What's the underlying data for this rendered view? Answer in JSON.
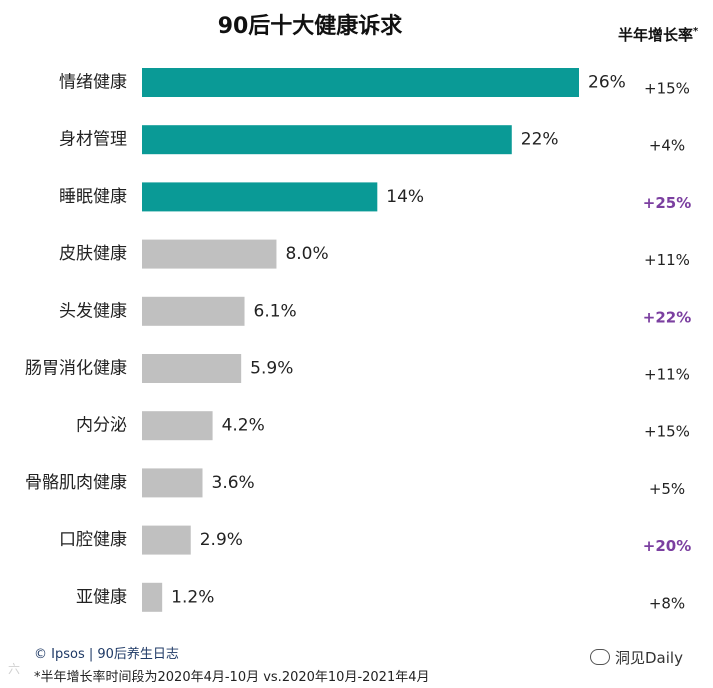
{
  "title": "90后十大健康诉求",
  "growth_header": "半年增长率",
  "growth_header_mark": "*",
  "footer": {
    "source": "© Ipsos | 90后养生日志",
    "note": "*半年增长率时间段为2020年4月-10月 vs.2020年10月-2021年4月"
  },
  "watermark": {
    "text": "洞见Daily",
    "icon": "wechat-icon"
  },
  "corner_mark": "六",
  "colors": {
    "highlight": "#0a9a96",
    "normal": "#c0c0c0",
    "purple": "#7b3fa0",
    "text": "#222222"
  },
  "chart_data": {
    "type": "bar",
    "orientation": "horizontal",
    "categories": [
      "情绪健康",
      "身材管理",
      "睡眠健康",
      "皮肤健康",
      "头发健康",
      "肠胃消化健康",
      "内分泌",
      "骨骼肌肉健康",
      "口腔健康",
      "亚健康"
    ],
    "values": [
      26,
      22,
      14,
      8.0,
      6.1,
      5.9,
      4.2,
      3.6,
      2.9,
      1.2
    ],
    "value_labels": [
      "26%",
      "22%",
      "14%",
      "8.0%",
      "6.1%",
      "5.9%",
      "4.2%",
      "3.6%",
      "2.9%",
      "1.2%"
    ],
    "highlighted": [
      true,
      true,
      true,
      false,
      false,
      false,
      false,
      false,
      false,
      false
    ],
    "growth": [
      "+15%",
      "+4%",
      "+25%",
      "+11%",
      "+22%",
      "+11%",
      "+15%",
      "+5%",
      "+20%",
      "+8%"
    ],
    "growth_emphasis": [
      false,
      false,
      true,
      false,
      true,
      false,
      false,
      false,
      true,
      false
    ],
    "xlim": [
      0,
      26
    ]
  }
}
